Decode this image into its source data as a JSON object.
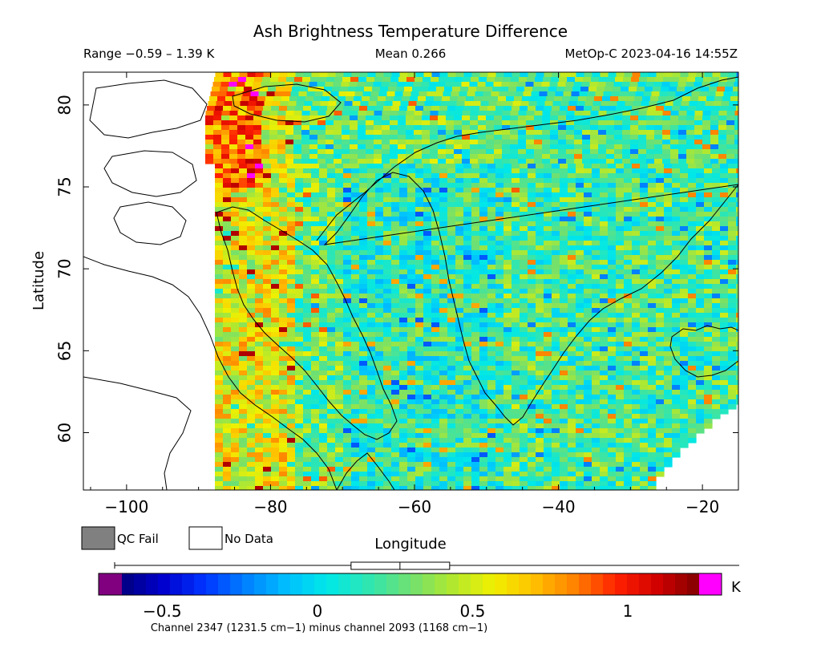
{
  "chart_data": {
    "type": "heatmap",
    "title": "Ash Brightness Temperature Difference",
    "subtitle_left": "Range −0.59 – 1.39 K",
    "subtitle_mid": "Mean 0.266",
    "subtitle_right": "MetOp-C 2023-04-16 14:55Z",
    "xlabel": "Longitude",
    "ylabel": "Latitude",
    "xlim": [
      -106,
      -15
    ],
    "ylim": [
      56.5,
      82
    ],
    "x_ticks": [
      -100,
      -80,
      -60,
      -40,
      -20
    ],
    "x_tick_labels": [
      "−100",
      "−80",
      "−60",
      "−40",
      "−20"
    ],
    "y_ticks": [
      60,
      65,
      70,
      75,
      80
    ],
    "y_tick_labels": [
      "60",
      "65",
      "70",
      "75",
      "80"
    ],
    "legend": {
      "qc_fail": "QC Fail",
      "no_data": "No Data"
    },
    "colorbar": {
      "unit": "K",
      "range": [
        -0.63,
        1.23
      ],
      "tick_values": [
        -0.5,
        0,
        0.5,
        1
      ],
      "tick_labels": [
        "−0.5",
        "0",
        "0.5",
        "1"
      ],
      "caption": "Channel 2347 (1231.5 cm−1) minus channel 2093 (1168 cm−1)",
      "stops": [
        "#000080",
        "#0000cd",
        "#0033ff",
        "#0080ff",
        "#00c0ff",
        "#00e8e8",
        "#30e6b0",
        "#70e070",
        "#b0e830",
        "#f0f000",
        "#ffc000",
        "#ff8000",
        "#ff2000",
        "#d00000",
        "#800000"
      ],
      "under_color": "#800080",
      "over_color": "#ff00ff"
    },
    "range_marker": {
      "min": -0.59,
      "max": 1.39,
      "mean": 0.266
    },
    "colors": {
      "qc_fail": "#808080",
      "no_data": "#ffffff"
    }
  }
}
